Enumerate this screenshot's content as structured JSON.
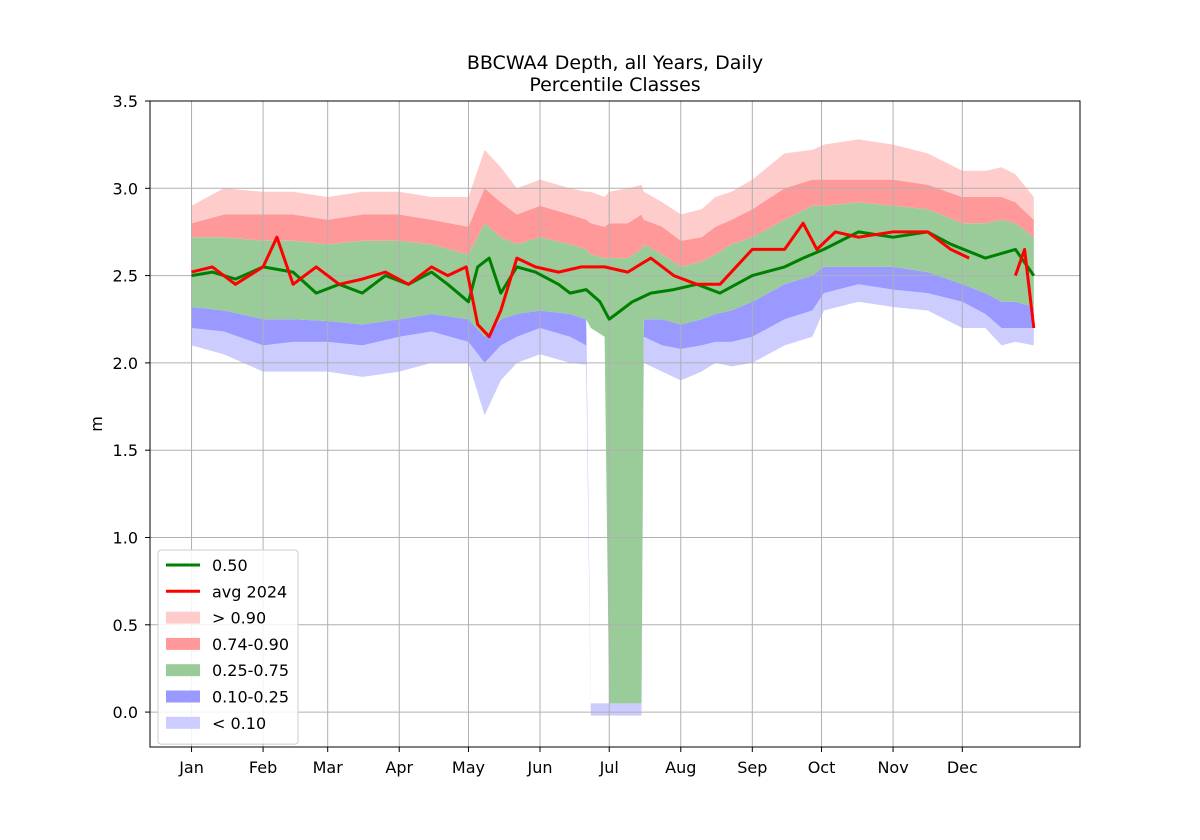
{
  "chart_data": {
    "type": "area",
    "title": "BBCWA4 Depth, all Years, Daily",
    "subtitle": "Percentile Classes",
    "xlabel": "",
    "ylabel": "m",
    "ylim": [
      -0.2,
      3.5
    ],
    "yticks": [
      "0.0",
      "0.5",
      "1.0",
      "1.5",
      "2.0",
      "2.5",
      "3.0",
      "3.5"
    ],
    "x_ticks": [
      "Jan",
      "Feb",
      "Mar",
      "Apr",
      "May",
      "Jun",
      "Jul",
      "Aug",
      "Sep",
      "Oct",
      "Nov",
      "Dec"
    ],
    "grid": true,
    "legend_position": "lower left",
    "x_unit": "day of year",
    "x": [
      1,
      15,
      32,
      45,
      60,
      75,
      91,
      105,
      121,
      128,
      135,
      142,
      152,
      165,
      172,
      174,
      180,
      182,
      190,
      196,
      197,
      205,
      213,
      222,
      228,
      235,
      244,
      258,
      270,
      275,
      290,
      305,
      320,
      335,
      345,
      352,
      358,
      366
    ],
    "bands": [
      {
        "name": "< 0.10",
        "color": "#ccccff",
        "lower": [
          2.1,
          2.05,
          1.95,
          1.95,
          1.95,
          1.92,
          1.95,
          2.0,
          2.0,
          1.7,
          1.9,
          2.0,
          2.05,
          2.0,
          1.99,
          -0.02,
          -0.02,
          -0.02,
          -0.02,
          -0.02,
          2.0,
          1.95,
          1.9,
          1.95,
          2.0,
          1.98,
          2.0,
          2.1,
          2.15,
          2.3,
          2.35,
          2.32,
          2.3,
          2.2,
          2.2,
          2.1,
          2.12,
          2.1
        ],
        "upper": [
          2.2,
          2.18,
          2.1,
          2.12,
          2.12,
          2.1,
          2.15,
          2.18,
          2.12,
          2.0,
          2.1,
          2.15,
          2.2,
          2.15,
          2.1,
          0.05,
          0.05,
          0.05,
          0.05,
          0.05,
          2.15,
          2.1,
          2.08,
          2.1,
          2.12,
          2.12,
          2.15,
          2.25,
          2.3,
          2.4,
          2.45,
          2.42,
          2.4,
          2.35,
          2.28,
          2.2,
          2.2,
          2.2
        ]
      },
      {
        "name": "0.10-0.25",
        "color": "#9999ff",
        "lower": [
          2.2,
          2.18,
          2.1,
          2.12,
          2.12,
          2.1,
          2.15,
          2.18,
          2.12,
          2.0,
          2.1,
          2.15,
          2.2,
          2.15,
          2.1,
          0.05,
          0.05,
          0.05,
          0.05,
          0.05,
          2.15,
          2.1,
          2.08,
          2.1,
          2.12,
          2.12,
          2.15,
          2.25,
          2.3,
          2.4,
          2.45,
          2.42,
          2.4,
          2.35,
          2.28,
          2.2,
          2.2,
          2.2
        ],
        "upper": [
          2.32,
          2.3,
          2.25,
          2.25,
          2.24,
          2.22,
          2.25,
          2.28,
          2.25,
          2.15,
          2.25,
          2.28,
          2.3,
          2.28,
          2.25,
          0.05,
          0.05,
          0.05,
          0.05,
          0.05,
          2.25,
          2.25,
          2.22,
          2.25,
          2.28,
          2.3,
          2.35,
          2.45,
          2.5,
          2.55,
          2.55,
          2.55,
          2.52,
          2.45,
          2.4,
          2.35,
          2.35,
          2.32
        ]
      },
      {
        "name": "0.25-0.75",
        "color": "#99cc99",
        "lower": [
          2.32,
          2.3,
          2.25,
          2.25,
          2.24,
          2.22,
          2.25,
          2.28,
          2.25,
          2.15,
          2.25,
          2.28,
          2.3,
          2.28,
          2.25,
          2.2,
          2.15,
          0.05,
          0.05,
          0.05,
          2.25,
          2.25,
          2.22,
          2.25,
          2.28,
          2.3,
          2.35,
          2.45,
          2.5,
          2.55,
          2.55,
          2.55,
          2.52,
          2.45,
          2.4,
          2.35,
          2.35,
          2.32
        ],
        "upper": [
          2.72,
          2.72,
          2.7,
          2.7,
          2.68,
          2.7,
          2.7,
          2.68,
          2.62,
          2.8,
          2.72,
          2.68,
          2.72,
          2.68,
          2.65,
          2.62,
          2.6,
          2.6,
          2.6,
          2.65,
          2.68,
          2.62,
          2.55,
          2.58,
          2.62,
          2.68,
          2.72,
          2.82,
          2.9,
          2.9,
          2.92,
          2.9,
          2.88,
          2.8,
          2.8,
          2.82,
          2.8,
          2.72
        ]
      },
      {
        "name": "0.74-0.90",
        "color": "#ff9999",
        "lower": [
          2.72,
          2.72,
          2.7,
          2.7,
          2.68,
          2.7,
          2.7,
          2.68,
          2.62,
          2.8,
          2.72,
          2.68,
          2.72,
          2.68,
          2.65,
          2.62,
          2.6,
          2.6,
          2.6,
          2.65,
          2.68,
          2.62,
          2.55,
          2.58,
          2.62,
          2.68,
          2.72,
          2.82,
          2.9,
          2.9,
          2.92,
          2.9,
          2.88,
          2.8,
          2.8,
          2.82,
          2.8,
          2.72
        ],
        "upper": [
          2.8,
          2.85,
          2.85,
          2.85,
          2.82,
          2.85,
          2.85,
          2.82,
          2.78,
          3.0,
          2.92,
          2.85,
          2.9,
          2.85,
          2.82,
          2.8,
          2.78,
          2.8,
          2.8,
          2.85,
          2.82,
          2.78,
          2.7,
          2.72,
          2.78,
          2.82,
          2.88,
          3.0,
          3.05,
          3.05,
          3.05,
          3.05,
          3.02,
          2.95,
          2.95,
          2.95,
          2.92,
          2.82
        ]
      },
      {
        "name": "> 0.90",
        "color": "#ffcccc",
        "lower": [
          2.8,
          2.85,
          2.85,
          2.85,
          2.82,
          2.85,
          2.85,
          2.82,
          2.78,
          3.0,
          2.92,
          2.85,
          2.9,
          2.85,
          2.82,
          2.8,
          2.78,
          2.8,
          2.8,
          2.85,
          2.82,
          2.78,
          2.7,
          2.72,
          2.78,
          2.82,
          2.88,
          3.0,
          3.05,
          3.05,
          3.05,
          3.05,
          3.02,
          2.95,
          2.95,
          2.95,
          2.92,
          2.82
        ],
        "upper": [
          2.9,
          3.0,
          2.98,
          2.98,
          2.95,
          2.98,
          2.98,
          2.95,
          2.95,
          3.22,
          3.12,
          3.0,
          3.05,
          3.0,
          2.98,
          2.98,
          2.95,
          2.98,
          3.0,
          3.02,
          2.98,
          2.92,
          2.85,
          2.88,
          2.95,
          2.98,
          3.05,
          3.2,
          3.22,
          3.25,
          3.28,
          3.25,
          3.2,
          3.1,
          3.1,
          3.12,
          3.08,
          2.95
        ]
      }
    ],
    "series": [
      {
        "name": "0.50",
        "color": "#008000",
        "line_width": 3,
        "x": [
          1,
          10,
          20,
          32,
          45,
          55,
          65,
          75,
          85,
          95,
          105,
          112,
          121,
          125,
          130,
          135,
          142,
          150,
          160,
          165,
          172,
          178,
          182,
          185,
          192,
          200,
          210,
          220,
          230,
          244,
          258,
          266,
          275,
          290,
          305,
          320,
          330,
          345,
          358,
          366
        ],
        "y": [
          2.5,
          2.52,
          2.48,
          2.55,
          2.52,
          2.4,
          2.45,
          2.4,
          2.5,
          2.45,
          2.52,
          2.45,
          2.35,
          2.55,
          2.6,
          2.4,
          2.55,
          2.52,
          2.45,
          2.4,
          2.42,
          2.35,
          2.25,
          2.28,
          2.35,
          2.4,
          2.42,
          2.45,
          2.4,
          2.5,
          2.55,
          2.6,
          2.65,
          2.75,
          2.72,
          2.75,
          2.68,
          2.6,
          2.65,
          2.5
        ]
      },
      {
        "name": "avg 2024",
        "color": "#ff0000",
        "line_width": 3,
        "x": [
          1,
          10,
          20,
          32,
          38,
          45,
          55,
          65,
          75,
          85,
          95,
          105,
          112,
          120,
          125,
          130,
          135,
          142,
          150,
          160,
          170,
          180,
          190,
          200,
          210,
          220,
          230,
          244,
          258,
          266,
          272,
          280,
          290,
          305,
          320,
          330,
          338
        ],
        "y": [
          2.52,
          2.55,
          2.45,
          2.55,
          2.72,
          2.45,
          2.55,
          2.45,
          2.48,
          2.52,
          2.45,
          2.55,
          2.5,
          2.55,
          2.22,
          2.15,
          2.3,
          2.6,
          2.55,
          2.52,
          2.55,
          2.55,
          2.52,
          2.6,
          2.5,
          2.45,
          2.45,
          2.65,
          2.65,
          2.8,
          2.65,
          2.75,
          2.72,
          2.75,
          2.75,
          2.65,
          2.6
        ],
        "segments_extra": [
          {
            "x": [
              358,
              362,
              366
            ],
            "y": [
              2.5,
              2.65,
              2.2
            ]
          }
        ]
      }
    ],
    "legend": [
      {
        "label": "0.50",
        "kind": "line",
        "color": "#008000"
      },
      {
        "label": "avg 2024",
        "kind": "line",
        "color": "#ff0000"
      },
      {
        "label": "> 0.90",
        "kind": "patch",
        "color": "#ffcccc"
      },
      {
        "label": "0.74-0.90",
        "kind": "patch",
        "color": "#ff9999"
      },
      {
        "label": "0.25-0.75",
        "kind": "patch",
        "color": "#99cc99"
      },
      {
        "label": "0.10-0.25",
        "kind": "patch",
        "color": "#9999ff"
      },
      {
        "label": "< 0.10",
        "kind": "patch",
        "color": "#ccccff"
      }
    ]
  }
}
